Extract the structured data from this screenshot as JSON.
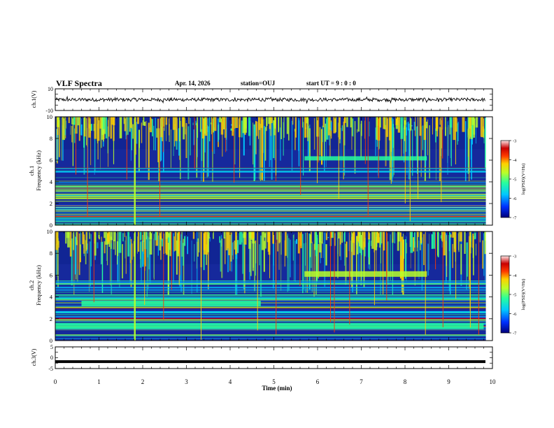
{
  "header": {
    "title": "VLF Spectra",
    "date": "Apr. 14, 2026",
    "station": "station=OUJ",
    "start": "start  UT =   9 : 0  : 0"
  },
  "colors": {
    "spectrogram_background": "#16299c",
    "waveform": "#000000",
    "colormap": [
      "#00007a",
      "#0030ff",
      "#00c8ff",
      "#26ff9e",
      "#b8ff2a",
      "#ffd000",
      "#ff3a00",
      "#c80000",
      "#ffe6e6"
    ]
  },
  "chart_data": [
    {
      "type": "line",
      "name": "ch1-waveform",
      "ylabel": "ch.1(V)",
      "ylim": [
        -10,
        10
      ],
      "yticks": [
        "10",
        "-10"
      ],
      "xlim": [
        0,
        10
      ],
      "description_value": "noisy trace around 0 V"
    },
    {
      "type": "heatmap",
      "name": "ch1-spectrogram",
      "ylabel": "ch.1\nFrequency (kHz)",
      "ylabel_line1": "ch.1",
      "ylabel_line2": "Frequency (kHz)",
      "xlim": [
        0,
        10
      ],
      "ylim": [
        0,
        10
      ],
      "yticks": [
        "0",
        "2",
        "4",
        "6",
        "8",
        "10"
      ],
      "colorbar": {
        "label": "log(PSD)(V²/Hz)",
        "ticks": [
          "-3",
          "-4",
          "-5",
          "-6",
          "-7"
        ],
        "range": [
          -7,
          -3
        ]
      },
      "features": [
        {
          "kind": "band",
          "t_start": 5.7,
          "t_end": 8.5,
          "f_kHz": 6.1,
          "level": -5.3
        },
        {
          "kind": "impulse",
          "t": 1.8,
          "level": -4.8
        }
      ]
    },
    {
      "type": "heatmap",
      "name": "ch2-spectrogram",
      "ylabel": "ch.2\nFrequency (kHz)",
      "ylabel_line1": "ch.2",
      "ylabel_line2": "Frequency (kHz)",
      "xlim": [
        0,
        10
      ],
      "ylim": [
        0,
        10
      ],
      "yticks": [
        "0",
        "2",
        "4",
        "6",
        "8",
        "10"
      ],
      "colorbar": {
        "label": "log(PSD)(V²/Hz)",
        "ticks": [
          "-3",
          "-4",
          "-5",
          "-6",
          "-7"
        ],
        "range": [
          -7,
          -3
        ]
      },
      "features": [
        {
          "kind": "band",
          "t_start": 0.6,
          "t_end": 4.7,
          "f_kHz": 3.4,
          "level": -5.3
        },
        {
          "kind": "band",
          "t_start": 5.7,
          "t_end": 8.5,
          "f_kHz": 6.1,
          "level": -5.0
        },
        {
          "kind": "band",
          "t_start": 0.0,
          "t_end": 9.8,
          "f_kHz": 1.3,
          "level": -5.6
        },
        {
          "kind": "impulse",
          "t": 1.8,
          "level": -4.8
        }
      ]
    },
    {
      "type": "line",
      "name": "ch3-waveform",
      "ylabel": "ch.3(V)",
      "ylim": [
        -5,
        5
      ],
      "yticks": [
        "5",
        "0",
        "-5"
      ],
      "xlim": [
        0,
        10
      ],
      "description_value": "flat at about -1.8 V"
    }
  ],
  "x_axis": {
    "label": "Time (min)",
    "ticks": [
      "0",
      "1",
      "2",
      "3",
      "4",
      "5",
      "6",
      "7",
      "8",
      "9",
      "10"
    ]
  }
}
